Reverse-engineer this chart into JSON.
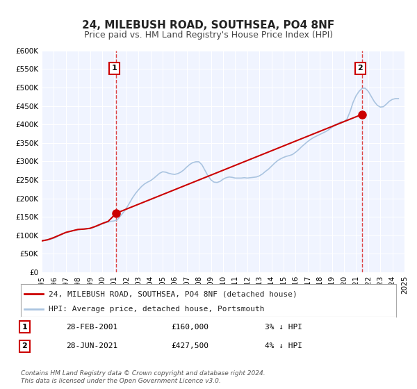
{
  "title_line1": "24, MILEBUSH ROAD, SOUTHSEA, PO4 8NF",
  "title_line2": "Price paid vs. HM Land Registry's House Price Index (HPI)",
  "bg_color": "#ffffff",
  "plot_bg_color": "#f0f4ff",
  "grid_color": "#ffffff",
  "xmin": 1995,
  "xmax": 2025,
  "ymin": 0,
  "ymax": 600000,
  "yticks": [
    0,
    50000,
    100000,
    150000,
    200000,
    250000,
    300000,
    350000,
    400000,
    450000,
    500000,
    550000,
    600000
  ],
  "ytick_labels": [
    "£0",
    "£50K",
    "£100K",
    "£150K",
    "£200K",
    "£250K",
    "£300K",
    "£350K",
    "£400K",
    "£450K",
    "£500K",
    "£550K",
    "£600K"
  ],
  "xticks": [
    1995,
    1996,
    1997,
    1998,
    1999,
    2000,
    2001,
    2002,
    2003,
    2004,
    2005,
    2006,
    2007,
    2008,
    2009,
    2010,
    2011,
    2012,
    2013,
    2014,
    2015,
    2016,
    2017,
    2018,
    2019,
    2020,
    2021,
    2022,
    2023,
    2024,
    2025
  ],
  "marker1_x": 2001.167,
  "marker1_y": 160000,
  "marker2_x": 2021.5,
  "marker2_y": 427500,
  "hpi_color": "#aac4e0",
  "price_color": "#cc0000",
  "marker_color": "#cc0000",
  "vline_color": "#dd4444",
  "legend_label1": "24, MILEBUSH ROAD, SOUTHSEA, PO4 8NF (detached house)",
  "legend_label2": "HPI: Average price, detached house, Portsmouth",
  "annotation1_label": "1",
  "annotation2_label": "2",
  "note1_date": "28-FEB-2001",
  "note1_price": "£160,000",
  "note1_hpi": "3% ↓ HPI",
  "note2_date": "28-JUN-2021",
  "note2_price": "£427,500",
  "note2_hpi": "4% ↓ HPI",
  "footer": "Contains HM Land Registry data © Crown copyright and database right 2024.\nThis data is licensed under the Open Government Licence v3.0.",
  "hpi_x": [
    1995.0,
    1995.25,
    1995.5,
    1995.75,
    1996.0,
    1996.25,
    1996.5,
    1996.75,
    1997.0,
    1997.25,
    1997.5,
    1997.75,
    1998.0,
    1998.25,
    1998.5,
    1998.75,
    1999.0,
    1999.25,
    1999.5,
    1999.75,
    2000.0,
    2000.25,
    2000.5,
    2000.75,
    2001.0,
    2001.25,
    2001.5,
    2001.75,
    2002.0,
    2002.25,
    2002.5,
    2002.75,
    2003.0,
    2003.25,
    2003.5,
    2003.75,
    2004.0,
    2004.25,
    2004.5,
    2004.75,
    2005.0,
    2005.25,
    2005.5,
    2005.75,
    2006.0,
    2006.25,
    2006.5,
    2006.75,
    2007.0,
    2007.25,
    2007.5,
    2007.75,
    2008.0,
    2008.25,
    2008.5,
    2008.75,
    2009.0,
    2009.25,
    2009.5,
    2009.75,
    2010.0,
    2010.25,
    2010.5,
    2010.75,
    2011.0,
    2011.25,
    2011.5,
    2011.75,
    2012.0,
    2012.25,
    2012.5,
    2012.75,
    2013.0,
    2013.25,
    2013.5,
    2013.75,
    2014.0,
    2014.25,
    2014.5,
    2014.75,
    2015.0,
    2015.25,
    2015.5,
    2015.75,
    2016.0,
    2016.25,
    2016.5,
    2016.75,
    2017.0,
    2017.25,
    2017.5,
    2017.75,
    2018.0,
    2018.25,
    2018.5,
    2018.75,
    2019.0,
    2019.25,
    2019.5,
    2019.75,
    2020.0,
    2020.25,
    2020.5,
    2020.75,
    2021.0,
    2021.25,
    2021.5,
    2021.75,
    2022.0,
    2022.25,
    2022.5,
    2022.75,
    2023.0,
    2023.25,
    2023.5,
    2023.75,
    2024.0,
    2024.25,
    2024.5
  ],
  "hpi_y": [
    85000,
    87000,
    89000,
    90000,
    92000,
    96000,
    100000,
    104000,
    107000,
    110000,
    112000,
    114000,
    115000,
    116000,
    117000,
    118000,
    119000,
    121000,
    124000,
    127000,
    131000,
    134000,
    136000,
    138000,
    139000,
    142000,
    152000,
    162000,
    173000,
    187000,
    201000,
    213000,
    223000,
    232000,
    239000,
    244000,
    248000,
    254000,
    261000,
    268000,
    272000,
    271000,
    268000,
    266000,
    265000,
    267000,
    271000,
    277000,
    285000,
    292000,
    297000,
    299000,
    299000,
    291000,
    276000,
    261000,
    250000,
    244000,
    243000,
    246000,
    252000,
    256000,
    258000,
    257000,
    255000,
    255000,
    255000,
    256000,
    255000,
    256000,
    257000,
    258000,
    261000,
    266000,
    273000,
    279000,
    287000,
    295000,
    302000,
    307000,
    311000,
    314000,
    316000,
    319000,
    325000,
    332000,
    340000,
    347000,
    354000,
    360000,
    365000,
    369000,
    373000,
    377000,
    381000,
    386000,
    392000,
    398000,
    403000,
    407000,
    408000,
    415000,
    435000,
    460000,
    478000,
    490000,
    498000,
    498000,
    490000,
    476000,
    462000,
    452000,
    447000,
    448000,
    455000,
    463000,
    468000,
    470000,
    470000
  ],
  "price_x": [
    1995.0,
    1995.5,
    1996.0,
    1996.5,
    1997.0,
    1997.5,
    1998.0,
    1998.5,
    1999.0,
    1999.5,
    2000.0,
    2000.5,
    2001.167,
    2021.5
  ],
  "price_y": [
    85000,
    88000,
    94000,
    101000,
    108000,
    112000,
    116000,
    117000,
    119000,
    125000,
    132000,
    138000,
    160000,
    427500
  ]
}
